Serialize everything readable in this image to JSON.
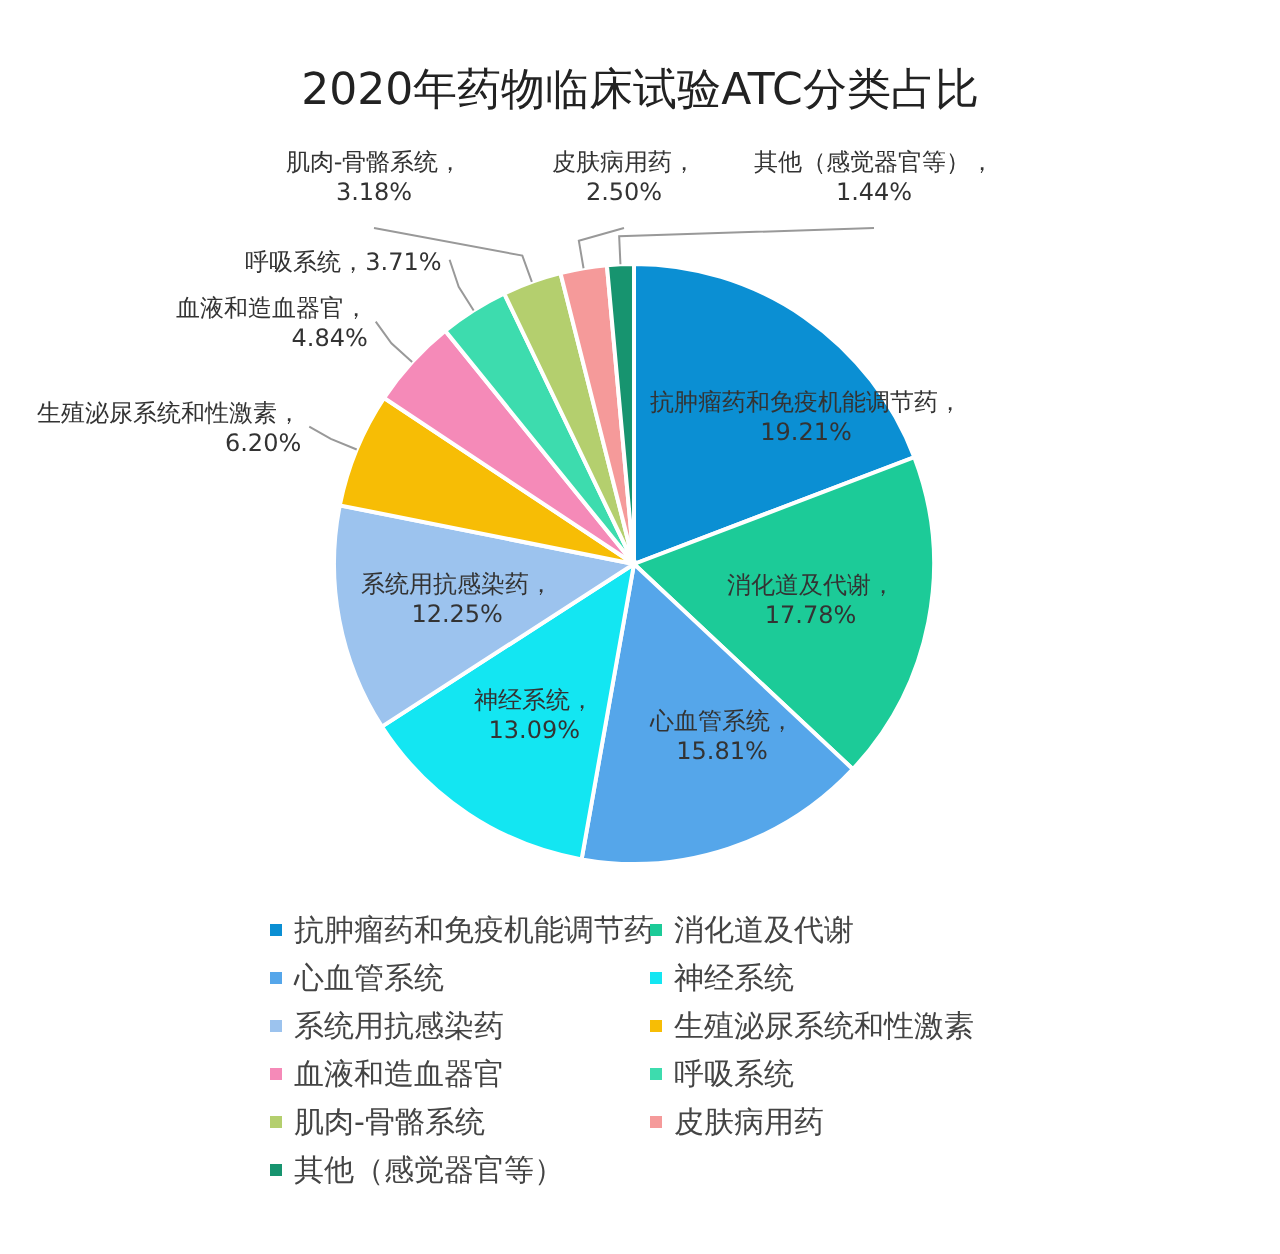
{
  "chart_data": {
    "type": "pie",
    "title": "2020年药物临床试验ATC分类占比",
    "categories": [
      "抗肿瘤药和免疫机能调节药",
      "消化道及代谢",
      "心血管系统",
      "神经系统",
      "系统用抗感染药",
      "生殖泌尿系统和性激素",
      "血液和造血器官",
      "呼吸系统",
      "肌肉-骨骼系统",
      "皮肤病用药",
      "其他（感觉器官等）"
    ],
    "values": [
      19.21,
      17.78,
      15.81,
      13.09,
      12.25,
      6.2,
      4.84,
      3.71,
      3.18,
      2.5,
      1.44
    ],
    "value_labels": [
      "抗肿瘤药和免疫机能调节药，19.21%",
      "消化道及代谢，17.78%",
      "心血管系统，15.81%",
      "神经系统，13.09%",
      "系统用抗感染药，12.25%",
      "生殖泌尿系统和性激素，6.20%",
      "血液和造血器官，4.84%",
      "呼吸系统，3.71%",
      "肌肉-骨骼系统，3.18%",
      "皮肤病用药，2.50%",
      "其他（感觉器官等），1.44%"
    ],
    "colors": [
      "#0b8fd3",
      "#1ccb98",
      "#55a6ea",
      "#13e6f2",
      "#9cc3ee",
      "#f7bd05",
      "#f58ab8",
      "#3ddcae",
      "#b4cf6e",
      "#f59a9a",
      "#17946f"
    ],
    "legend": "bottom"
  }
}
